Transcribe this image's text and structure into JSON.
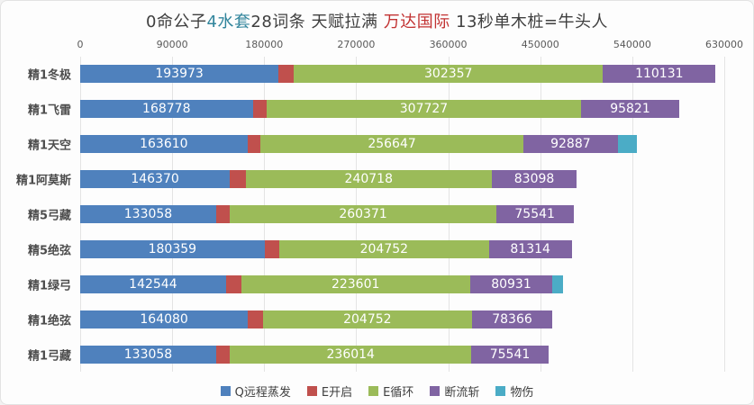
{
  "title": {
    "parts": [
      {
        "text": "0命公子",
        "color": "#3f3f3f"
      },
      {
        "text": "4水套",
        "color": "#31859c"
      },
      {
        "text": "28词条 天赋拉满 ",
        "color": "#3f3f3f"
      },
      {
        "text": "万达国际",
        "color": "#c23232"
      },
      {
        "text": " 13秒单木桩=牛头人",
        "color": "#3f3f3f"
      }
    ]
  },
  "colors": {
    "background": "#fdfdfd",
    "gridline": "#e4e4e4",
    "tick_text": "#595959",
    "category_text": "#4d4d4d",
    "bar_value_text": "#ffffff"
  },
  "chart_data": {
    "type": "bar",
    "orientation": "horizontal",
    "stacked": true,
    "grid": true,
    "title": "0命公子4水套28词条 天赋拉满 万达国际 13秒单木桩=牛头人",
    "legend_position": "bottom",
    "x_axis": {
      "position": "top",
      "min": 0,
      "max": 630000,
      "tick_interval": 90000,
      "ticks": [
        0,
        90000,
        180000,
        270000,
        360000,
        450000,
        540000,
        630000
      ]
    },
    "categories": [
      "精1冬极",
      "精1飞雷",
      "精1天空",
      "精1阿莫斯",
      "精5弓藏",
      "精5绝弦",
      "精1绿弓",
      "精1绝弦",
      "精1弓藏"
    ],
    "series": [
      {
        "name": "Q远程蒸发",
        "color": "#4f81bd",
        "show_labels": true,
        "estimated": false,
        "values": [
          193973,
          168778,
          163610,
          146370,
          133058,
          180359,
          142544,
          164080,
          133058
        ]
      },
      {
        "name": "E开启",
        "color": "#c0504d",
        "show_labels": false,
        "estimated": true,
        "values": [
          15000,
          13500,
          13000,
          15500,
          13500,
          14500,
          15000,
          14500,
          13500
        ]
      },
      {
        "name": "E循环",
        "color": "#9bbb59",
        "show_labels": true,
        "estimated": false,
        "values": [
          302357,
          307727,
          256647,
          240718,
          260371,
          204752,
          223601,
          204752,
          236014
        ]
      },
      {
        "name": "断流斩",
        "color": "#8064a2",
        "show_labels": true,
        "estimated": false,
        "values": [
          110131,
          95821,
          92887,
          83098,
          75541,
          81314,
          80931,
          78366,
          75541
        ]
      },
      {
        "name": "物伤",
        "color": "#4bacc6",
        "show_labels": false,
        "estimated": true,
        "values": [
          0,
          0,
          18000,
          0,
          0,
          0,
          10000,
          0,
          0
        ]
      }
    ]
  }
}
